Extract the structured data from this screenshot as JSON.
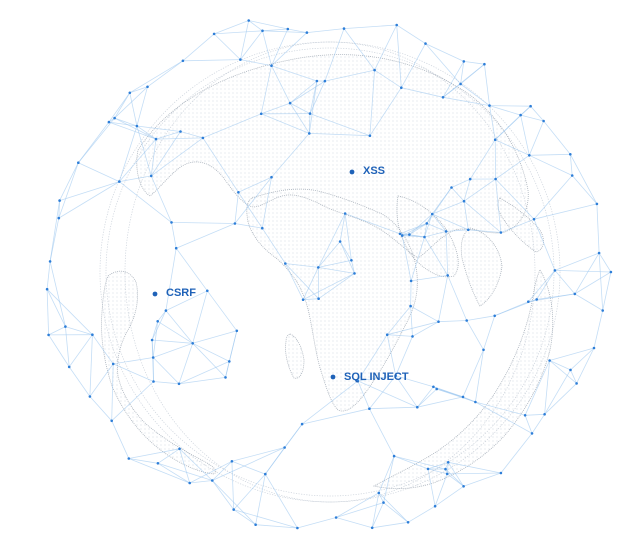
{
  "markers": [
    {
      "id": "xss",
      "label": "XSS"
    },
    {
      "id": "csrf",
      "label": "CSRF"
    },
    {
      "id": "sql",
      "label": "SQL INJECT"
    }
  ],
  "colors": {
    "accent": "#1f62b8",
    "mesh_line": "#9ec8f0",
    "mesh_node": "#2d7ed8",
    "land_outline": "#9aa4b0"
  },
  "icons": [
    "globe-icon",
    "network-mesh"
  ]
}
